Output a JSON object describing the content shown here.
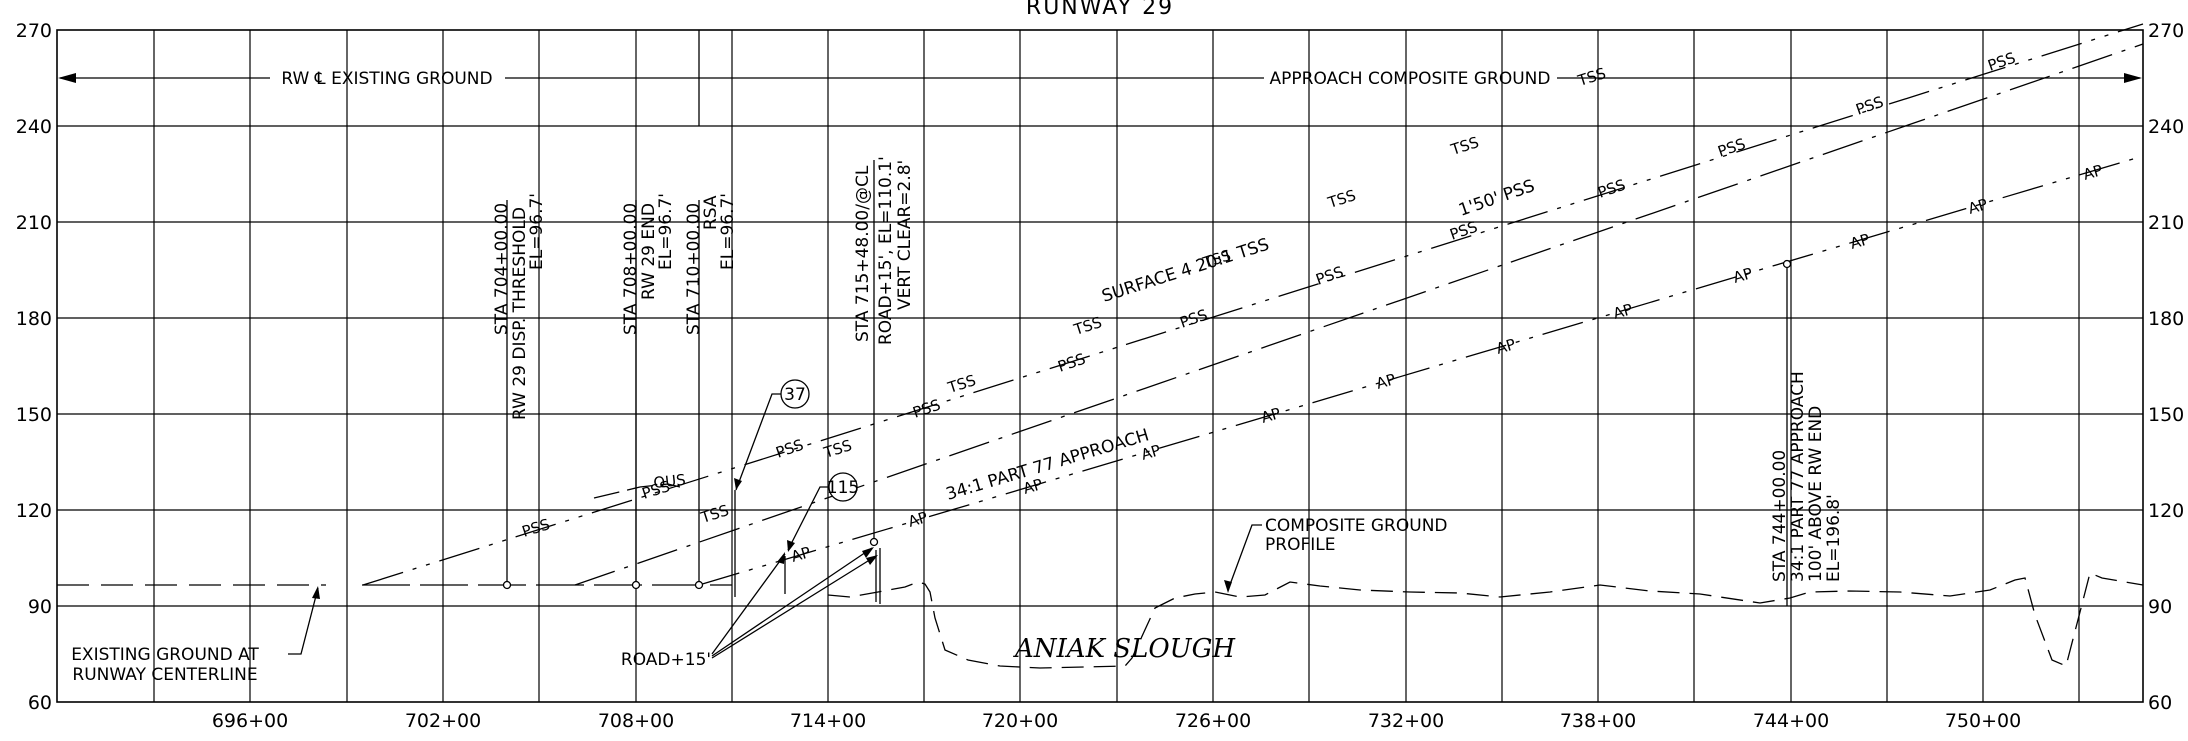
{
  "title": "RUNWAY 29",
  "axes": {
    "y_left": [
      "270",
      "240",
      "210",
      "180",
      "150",
      "120",
      "90",
      "60"
    ],
    "y_right": [
      "270",
      "240",
      "210",
      "180",
      "150",
      "120",
      "90",
      "60"
    ],
    "x": [
      "696+00",
      "702+00",
      "708+00",
      "714+00",
      "720+00",
      "726+00",
      "732+00",
      "738+00",
      "744+00",
      "750+00"
    ]
  },
  "headers": {
    "rw_existing": "RW ℄ EXISTING GROUND",
    "approach_composite": "APPROACH COMPOSITE GROUND"
  },
  "stations": [
    {
      "l1": "STA 704+00.00",
      "l2": "RW 29 DISP. THRESHOLD",
      "l3": "EL=96.7'"
    },
    {
      "l1": "STA 708+00.00",
      "l2": "RW 29 END",
      "l3": "EL=96.7'"
    },
    {
      "l1": "STA 710+00.00",
      "l2": "RSA",
      "l3": "EL=96.7'"
    },
    {
      "l1": "STA 715+48.00/@CL",
      "l2": "ROAD+15', EL=110.1'",
      "l3": "VERT CLEAR=2.8'"
    },
    {
      "l1": "STA 744+00.00",
      "l2": "34:1 PART 77 APPROACH",
      "l3": "100' ABOVE RW END",
      "l4": "EL=196.8'"
    }
  ],
  "surface_labels": {
    "tss_main": "SURFACE 4 20:1 TSS",
    "pss_main": "1'50' PSS",
    "ap_main": "34:1 PART 77 APPROACH",
    "tss": "TSS",
    "pss": "PSS",
    "ap": "AP",
    "ous": "OUS"
  },
  "callouts": {
    "bubble_37": "37",
    "bubble_115": "115",
    "existing_ground_1": "EXISTING GROUND AT",
    "existing_ground_2": "RUNWAY CENTERLINE",
    "composite_1": "COMPOSITE GROUND",
    "composite_2": "PROFILE",
    "road": "ROAD+15'",
    "slough": "ANIAK SLOUGH"
  }
}
